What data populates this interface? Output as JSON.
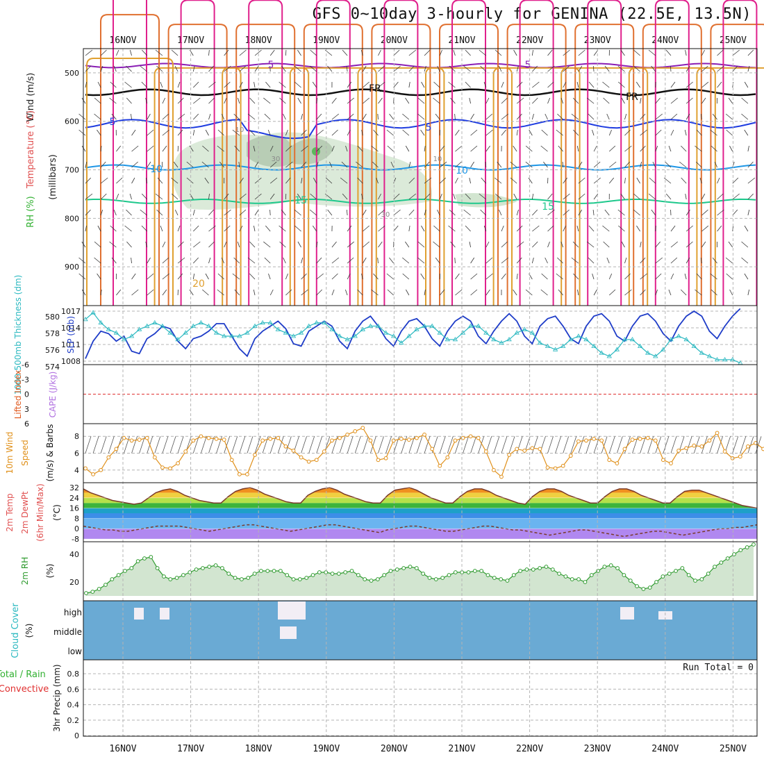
{
  "chart_data": {
    "type": "meteogram",
    "title": "GFS 0~10day 3-hourly for GENINA (22.5E, 13.5N)",
    "x_dates": [
      "16NOV",
      "17NOV",
      "18NOV",
      "19NOV",
      "20NOV",
      "21NOV",
      "22NOV",
      "23NOV",
      "24NOV",
      "25NOV"
    ],
    "colors": {
      "grid": "#b4b4b4",
      "cloud_bg": "#6aaad4",
      "cloud_block": "#f2eef5",
      "rh_fill": "#d2e5d0",
      "rh_line": "#2e9a2e",
      "wind_line": "#e0901a",
      "slp_line": "#1e3cc8",
      "thick_line": "#2ab8c0",
      "li_zero": "#e03030"
    },
    "panels": [
      {
        "id": "upper",
        "ylabel_lines": [
          "Wind (m/s)",
          "Temperature (°C)",
          "RH (%)",
          "(millibars)"
        ],
        "ylabel_colors": [
          "#222222",
          "#e05050",
          "#30b030",
          "#222222"
        ],
        "yticks": [
          "500",
          "600",
          "700",
          "800",
          "900"
        ],
        "contour_labels": [
          "5",
          "5",
          "FR",
          "FR",
          "5",
          "5",
          "10",
          "10",
          "15",
          "15",
          "10",
          "30",
          "30",
          "10",
          "20"
        ],
        "isotherms": [
          {
            "label": "-5",
            "base_mb": 485,
            "color": "#8a1eb4",
            "amp": 5
          },
          {
            "label": "FR",
            "base_mb": 540,
            "color": "#111111",
            "amp": 7
          },
          {
            "label": "5",
            "base_mb": 605,
            "color": "#1e3ce0",
            "amp": 10
          },
          {
            "label": "10",
            "base_mb": 695,
            "color": "#1e96e6",
            "amp": 6
          },
          {
            "label": "15",
            "base_mb": 765,
            "color": "#1ec88c",
            "amp": 5
          }
        ]
      },
      {
        "id": "slp",
        "ylabel_left": "1000-500mb Thickness (dm)",
        "ylabel_right": "SLP (mb)",
        "yticks_left": [
          "580",
          "578",
          "576",
          "574"
        ],
        "yticks_right": [
          "1017",
          "1014",
          "1011",
          "1008"
        ],
        "slp_mb": [
          1007.5,
          1011,
          1013,
          1012.5,
          1011,
          1012,
          1009,
          1008.5,
          1011.5,
          1012.5,
          1014,
          1013.5,
          1011,
          1009.5,
          1011.5,
          1012,
          1013,
          1014.5,
          1014.5,
          1012,
          1009.5,
          1008,
          1011.5,
          1013,
          1014,
          1015,
          1013.5,
          1010.5,
          1010,
          1013,
          1014,
          1015,
          1014,
          1011,
          1009.5,
          1013,
          1015,
          1016,
          1014,
          1011.5,
          1010,
          1013,
          1015,
          1015.5,
          1014,
          1011.5,
          1010,
          1013,
          1015,
          1016,
          1015,
          1012,
          1010.5,
          1013,
          1015,
          1016.5,
          1015,
          1012,
          1010.5,
          1014,
          1015.5,
          1016,
          1014,
          1011.5,
          1010.5,
          1014,
          1016,
          1016.5,
          1015,
          1012,
          1011,
          1014,
          1016,
          1016.5,
          1015,
          1012.5,
          1011,
          1014,
          1016,
          1017,
          1016,
          1013,
          1011.5,
          1014,
          1016,
          1017.5
        ],
        "thickness_dm": [
          579.5,
          580.5,
          579,
          578,
          577.5,
          576.5,
          577,
          578,
          578.5,
          579,
          578.5,
          577.5,
          576.5,
          577.5,
          578.5,
          579,
          578.5,
          577.5,
          577,
          577,
          577,
          577.5,
          578.5,
          579,
          579,
          578,
          577.5,
          577,
          577.5,
          578.5,
          579,
          579,
          578,
          577,
          576.5,
          577,
          578,
          578.5,
          578.5,
          577.5,
          577,
          576,
          577,
          578,
          578.5,
          578.5,
          577.5,
          576.5,
          576.5,
          577.5,
          578.5,
          578.5,
          577.5,
          576.5,
          576,
          576.5,
          577.5,
          578,
          577.5,
          576,
          575.5,
          575,
          575.5,
          576.5,
          577,
          576.5,
          575.5,
          574.5,
          574,
          575,
          576.5,
          576.5,
          575.5,
          574.5,
          574,
          575,
          576.5,
          577,
          576.5,
          575.5,
          574.5,
          574,
          573.5,
          573.5,
          573.5,
          573
        ]
      },
      {
        "id": "cape",
        "ylabel_left": "Lifted Index",
        "ylabel_right": "CAPE (J/kg)",
        "yticks": [
          "-6",
          "-3",
          "0",
          "3",
          "6"
        ]
      },
      {
        "id": "wind10",
        "ylabel": [
          "10m Wind",
          "Speed",
          "(m/s) & Barbs"
        ],
        "yticks": [
          "8",
          "6",
          "4"
        ],
        "speed_ms": [
          4.2,
          3.5,
          4,
          5.5,
          6.5,
          7.8,
          7.5,
          7.6,
          7.8,
          5.5,
          4.3,
          4.2,
          4.8,
          6.2,
          7.5,
          8,
          7.8,
          7.7,
          7.6,
          5.2,
          3.5,
          3.5,
          5.8,
          7.5,
          7.7,
          7.8,
          6.8,
          6.3,
          5.5,
          5.0,
          5.2,
          6.2,
          7.5,
          7.8,
          8.2,
          8.6,
          9,
          7.5,
          5.2,
          5.4,
          7.5,
          7.7,
          7.6,
          7.8,
          8.2,
          6.5,
          4.5,
          5.5,
          7.5,
          7.8,
          8,
          7.8,
          6.2,
          4,
          3.2,
          5.8,
          6.5,
          6.3,
          6.6,
          6.5,
          4.3,
          4.2,
          4.5,
          5.7,
          7.4,
          7.5,
          7.7,
          7.5,
          5.2,
          4.8,
          6.5,
          7.6,
          7.7,
          7.8,
          7.5,
          5.2,
          4.8,
          6.3,
          6.6,
          6.9,
          6.8,
          7.5,
          8.4,
          6.2,
          5.4,
          5.6,
          6.8,
          7.2,
          6.5,
          7.1,
          7.7,
          7.8
        ]
      },
      {
        "id": "temp2m",
        "ylabel": [
          "2m Temp",
          "2m DewPt",
          "(6hr Min/Max)"
        ],
        "unit": "(°C)",
        "yticks": [
          "32",
          "24",
          "16",
          "8",
          "0",
          "-8"
        ],
        "temp_c": [
          31,
          28,
          26,
          24,
          22,
          21,
          20,
          19,
          20,
          24,
          28,
          30,
          31,
          29,
          26,
          24,
          22,
          21,
          20,
          20,
          25,
          29,
          31,
          32,
          30,
          27,
          25,
          23,
          21,
          20,
          20,
          26,
          29,
          31,
          32,
          30,
          27,
          25,
          23,
          21,
          20,
          20,
          26,
          30,
          31,
          32,
          30,
          27,
          24,
          22,
          20,
          20,
          25,
          29,
          31,
          31,
          29,
          26,
          24,
          22,
          20,
          19,
          25,
          29,
          31,
          31,
          29,
          26,
          24,
          22,
          20,
          20,
          25,
          29,
          31,
          31,
          29,
          26,
          24,
          22,
          20,
          20,
          25,
          29,
          30,
          30,
          28,
          26,
          24,
          22,
          20,
          18,
          17,
          16
        ],
        "dewpt_c": [
          2,
          1,
          0,
          -1,
          -1,
          -2,
          -2,
          -1,
          0,
          1,
          2,
          2,
          2,
          2,
          1,
          0,
          -1,
          -2,
          -1,
          0,
          1,
          2,
          3,
          3,
          2,
          1,
          0,
          -1,
          -2,
          -1,
          0,
          1,
          2,
          3,
          3,
          2,
          1,
          0,
          -1,
          -2,
          -3,
          -1,
          0,
          1,
          2,
          2,
          1,
          0,
          -1,
          -2,
          -2,
          -1,
          0,
          1,
          2,
          2,
          1,
          0,
          -1,
          -1,
          -2,
          -3,
          -4,
          -5,
          -4,
          -3,
          -2,
          -1,
          -1,
          -2,
          -3,
          -4,
          -5,
          -6,
          -5,
          -4,
          -3,
          -2,
          -2,
          -3,
          -4,
          -5,
          -4,
          -3,
          -2,
          -1,
          0,
          0,
          1,
          1,
          2,
          3
        ]
      },
      {
        "id": "rh2m",
        "ylabel": "2m RH",
        "unit": "(%)",
        "yticks": [
          "40",
          "20"
        ],
        "rh_pct": [
          12,
          13,
          15,
          18,
          22,
          25,
          28,
          30,
          35,
          37,
          38,
          30,
          24,
          22,
          23,
          25,
          27,
          29,
          30,
          31,
          32,
          30,
          26,
          23,
          22,
          23,
          26,
          28,
          28,
          28,
          28,
          25,
          22,
          22,
          23,
          25,
          27,
          27,
          26,
          26,
          27,
          28,
          25,
          22,
          21,
          22,
          25,
          28,
          29,
          30,
          31,
          30,
          26,
          23,
          22,
          23,
          25,
          27,
          27,
          27,
          28,
          28,
          25,
          23,
          22,
          21,
          25,
          28,
          29,
          29,
          30,
          31,
          29,
          26,
          24,
          22,
          22,
          20,
          25,
          28,
          31,
          32,
          30,
          25,
          21,
          17,
          15,
          16,
          20,
          24,
          26,
          28,
          30,
          25,
          21,
          22,
          26,
          31,
          34,
          37,
          40,
          43,
          45,
          47
        ]
      },
      {
        "id": "cloud",
        "ylabel": "Cloud Cover",
        "unit": "(%)",
        "levels": [
          "high",
          "middle",
          "low"
        ]
      },
      {
        "id": "precip",
        "ylabel_left": [
          "Total / Rain",
          "Convective"
        ],
        "ylabel_right": "3hr Precip (mm)",
        "yticks": [
          "0.8",
          "0.6",
          "0.4",
          "0.2",
          "0"
        ],
        "run_total": "Run Total = 0"
      }
    ]
  }
}
